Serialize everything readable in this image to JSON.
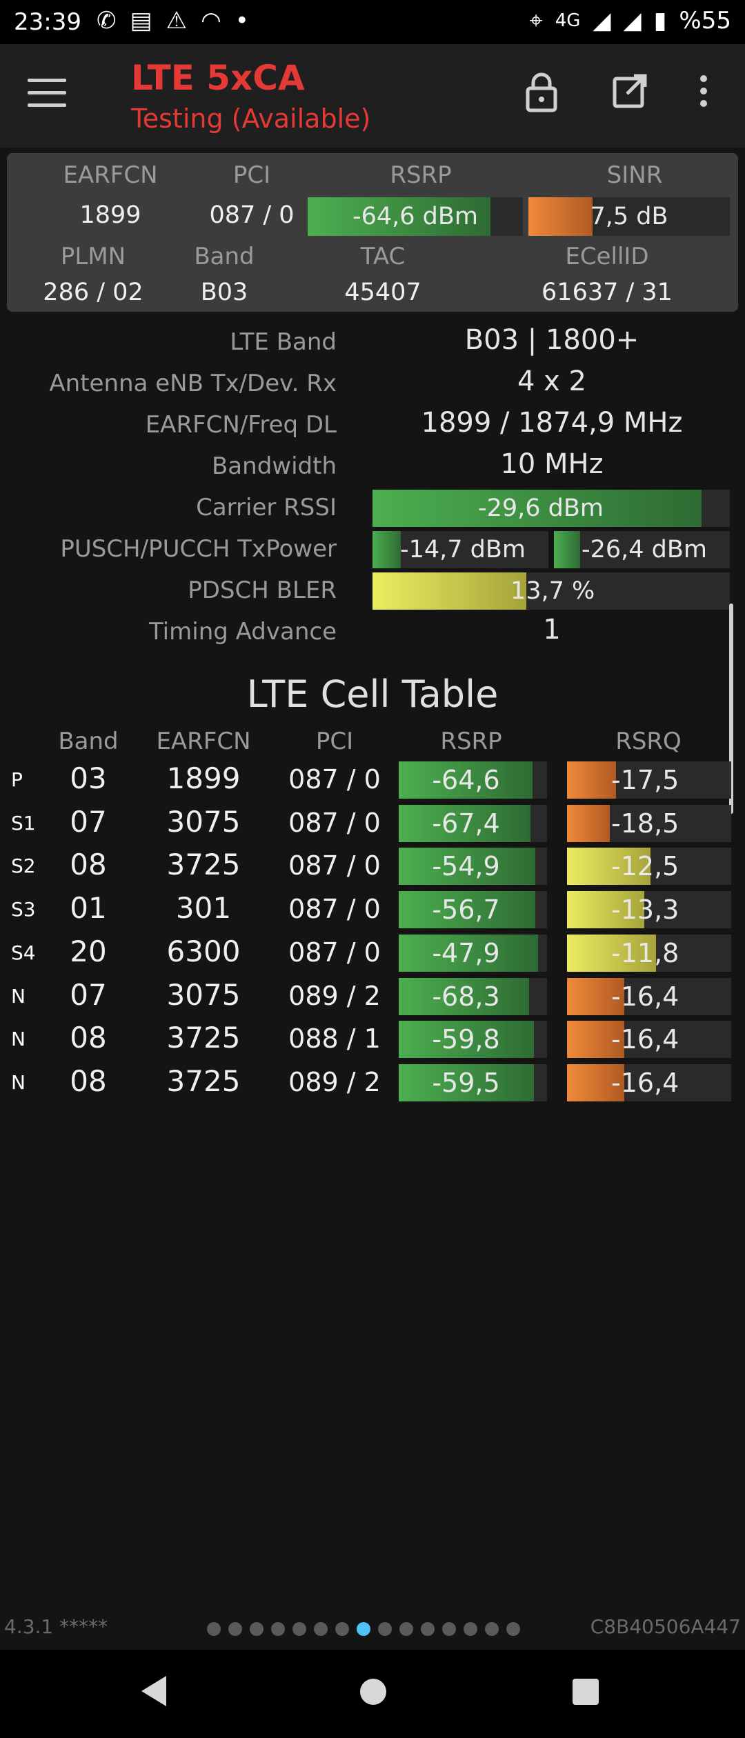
{
  "status_bar": {
    "time": "23:39",
    "network": "4G",
    "battery": "%55",
    "icons": [
      "whatsapp-icon",
      "news-icon",
      "alert-icon",
      "wifi-icon",
      "dot-icon",
      "location-icon",
      "signal-icon",
      "signal-icon",
      "battery-icon"
    ]
  },
  "toolbar": {
    "title": "LTE 5xCA",
    "subtitle": "Testing (Available)",
    "icons": [
      "menu-icon",
      "lock-icon",
      "open-external-icon",
      "more-vert-icon"
    ]
  },
  "summary": {
    "earfcn_label": "EARFCN",
    "earfcn": "1899",
    "pci_label": "PCI",
    "pci": "087 / 0",
    "rsrp_label": "RSRP",
    "rsrp": "-64,6 dBm",
    "rsrp_level": 0.85,
    "sinr_label": "SINR",
    "sinr": "7,5 dB",
    "sinr_level": 0.32,
    "plmn_label": "PLMN",
    "plmn": "286 / 02",
    "band_label": "Band",
    "band": "B03",
    "tac_label": "TAC",
    "tac": "45407",
    "ecellid_label": "ECellID",
    "ecellid": "61637 / 31"
  },
  "details": {
    "lte_band_label": "LTE Band",
    "lte_band": "B03 | 1800+",
    "antenna_label": "Antenna eNB Tx/Dev. Rx",
    "antenna": "4 x 2",
    "freq_label": "EARFCN/Freq DL",
    "freq": "1899 / 1874,9 MHz",
    "bandwidth_label": "Bandwidth",
    "bandwidth": "10 MHz",
    "rssi_label": "Carrier RSSI",
    "rssi": "-29,6 dBm",
    "rssi_level": 0.92,
    "txpower_label": "PUSCH/PUCCH TxPower",
    "pusch": "-14,7 dBm",
    "pusch_level": 0.16,
    "pucch": "-26,4 dBm",
    "pucch_level": 0.15,
    "bler_label": "PDSCH BLER",
    "bler": "13,7 %",
    "bler_level": 0.43,
    "ta_label": "Timing Advance",
    "ta": "1"
  },
  "cell_table": {
    "title": "LTE Cell Table",
    "headers": {
      "band": "Band",
      "earfcn": "EARFCN",
      "pci": "PCI",
      "rsrp": "RSRP",
      "rsrq": "RSRQ"
    },
    "rows": [
      {
        "tag": "P",
        "band": "03",
        "earfcn": "1899",
        "pci": "087 / 0",
        "rsrp": "-64,6",
        "rsrp_level": 0.9,
        "rsrq": "-17,5",
        "rsrq_level": 0.3,
        "rsrq_color": "orange"
      },
      {
        "tag": "S1",
        "band": "07",
        "earfcn": "3075",
        "pci": "087 / 0",
        "rsrp": "-67,4",
        "rsrp_level": 0.89,
        "rsrq": "-18,5",
        "rsrq_level": 0.26,
        "rsrq_color": "orange"
      },
      {
        "tag": "S2",
        "band": "08",
        "earfcn": "3725",
        "pci": "087 / 0",
        "rsrp": "-54,9",
        "rsrp_level": 0.92,
        "rsrq": "-12,5",
        "rsrq_level": 0.51,
        "rsrq_color": "yellow"
      },
      {
        "tag": "S3",
        "band": "01",
        "earfcn": "301",
        "pci": "087 / 0",
        "rsrp": "-56,7",
        "rsrp_level": 0.92,
        "rsrq": "-13,3",
        "rsrq_level": 0.47,
        "rsrq_color": "yellow"
      },
      {
        "tag": "S4",
        "band": "20",
        "earfcn": "6300",
        "pci": "087 / 0",
        "rsrp": "-47,9",
        "rsrp_level": 0.94,
        "rsrq": "-11,8",
        "rsrq_level": 0.54,
        "rsrq_color": "yellow"
      },
      {
        "tag": "N",
        "band": "07",
        "earfcn": "3075",
        "pci": "089 / 2",
        "rsrp": "-68,3",
        "rsrp_level": 0.88,
        "rsrq": "-16,4",
        "rsrq_level": 0.35,
        "rsrq_color": "orange"
      },
      {
        "tag": "N",
        "band": "08",
        "earfcn": "3725",
        "pci": "088 / 1",
        "rsrp": "-59,8",
        "rsrp_level": 0.91,
        "rsrq": "-16,4",
        "rsrq_level": 0.35,
        "rsrq_color": "orange"
      },
      {
        "tag": "N",
        "band": "08",
        "earfcn": "3725",
        "pci": "089 / 2",
        "rsrp": "-59,5",
        "rsrp_level": 0.91,
        "rsrq": "-16,4",
        "rsrq_level": 0.35,
        "rsrq_color": "orange"
      }
    ]
  },
  "footer": {
    "version": "4.3.1 *****",
    "device_id": "C8B40506A447",
    "page_count": 15,
    "active_page": 7
  },
  "colors": {
    "accent": "#e53935",
    "good": "#4caf50",
    "warn": "#f08a3a",
    "mid": "#ecec60",
    "indicator": "#4fc3f7"
  }
}
